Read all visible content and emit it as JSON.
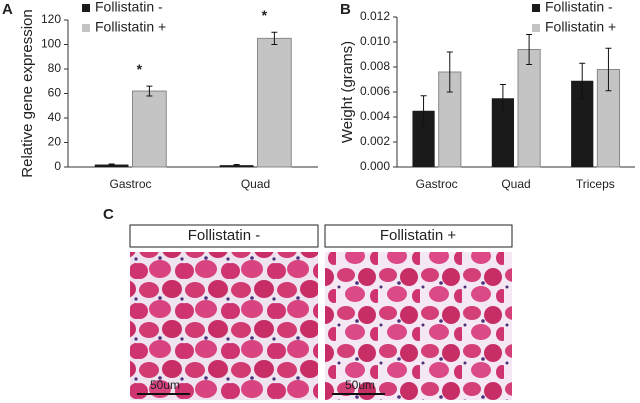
{
  "chart_data": [
    {
      "type": "bar",
      "panel_label": "A",
      "y_label": "Relative gene expression",
      "categories": [
        "Gastroc",
        "Quad"
      ],
      "series": [
        {
          "name": "Follistatin -",
          "color": "#1a1a1a",
          "values": [
            2,
            1.5
          ],
          "errors": [
            0.5,
            0.5
          ]
        },
        {
          "name": "Follistatin +",
          "color": "#c4c4c4",
          "values": [
            62,
            105
          ],
          "errors": [
            4,
            5
          ]
        }
      ],
      "annotations": [
        "*",
        "*"
      ],
      "ylim": [
        0,
        120
      ],
      "yticks": [
        0,
        20,
        40,
        60,
        80,
        100,
        120
      ]
    },
    {
      "type": "bar",
      "panel_label": "B",
      "y_label": "Weight (grams)",
      "categories": [
        "Gastroc",
        "Quad",
        "Triceps"
      ],
      "series": [
        {
          "name": "Follistatin -",
          "color": "#1a1a1a",
          "values": [
            0.0045,
            0.0055,
            0.0069
          ],
          "errors": [
            0.0012,
            0.0011,
            0.0014
          ]
        },
        {
          "name": "Follistatin +",
          "color": "#c4c4c4",
          "values": [
            0.0076,
            0.0094,
            0.0078
          ],
          "errors": [
            0.0016,
            0.0012,
            0.0017
          ]
        }
      ],
      "ylim": [
        0,
        0.012
      ],
      "yticks": [
        {
          "value": 0,
          "label": "0.000"
        },
        {
          "value": 0.002,
          "label": "0.002"
        },
        {
          "value": 0.004,
          "label": "0.004"
        },
        {
          "value": 0.006,
          "label": "0.006"
        },
        {
          "value": 0.008,
          "label": "0.008"
        },
        {
          "value": 0.01,
          "label": "0.010"
        },
        {
          "value": 0.012,
          "label": "0.012"
        }
      ]
    }
  ],
  "panel_c": {
    "label": "C",
    "images": [
      {
        "title": "Follistatin -",
        "scale_bar": "50um"
      },
      {
        "title": "Follistatin +",
        "scale_bar": "50um"
      }
    ]
  }
}
